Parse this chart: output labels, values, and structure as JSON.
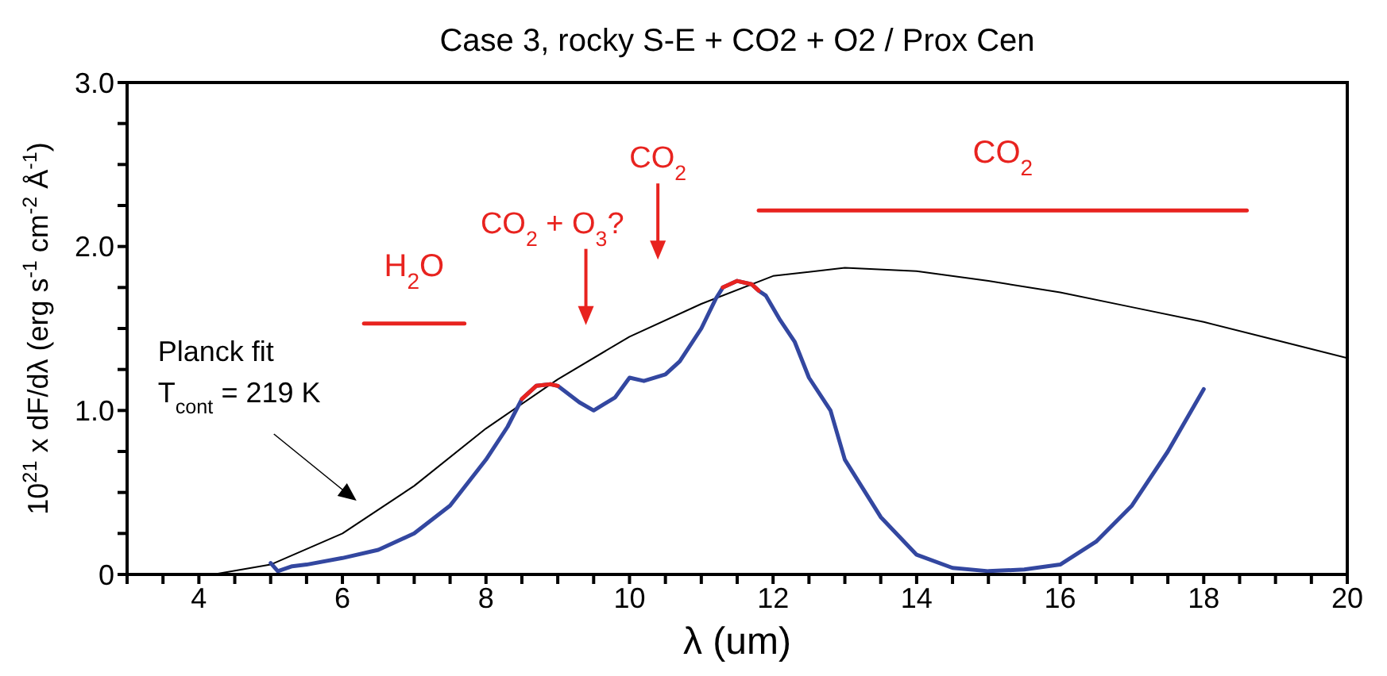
{
  "chart_data": {
    "type": "line",
    "title": "Case 3, rocky S-E  + CO2 + O2 / Prox Cen",
    "xlabel": "λ (um)",
    "ylabel": "10$^{21}$ x dF/dλ   (erg s$^{-1}$ cm$^{-2}$ Å$^{-1}$)",
    "xlim": [
      3,
      20
    ],
    "xticks": [
      {
        "value": 3,
        "label": null
      },
      {
        "value": 3.5,
        "label": null
      },
      4,
      {
        "value": 4.5,
        "label": null
      },
      {
        "value": 5,
        "label": null
      },
      {
        "value": 5.5,
        "label": null
      },
      6,
      {
        "value": 6.5,
        "label": null
      },
      {
        "value": 7,
        "label": null
      },
      {
        "value": 7.5,
        "label": null
      },
      8,
      {
        "value": 8.5,
        "label": null
      },
      {
        "value": 9,
        "label": null
      },
      {
        "value": 9.5,
        "label": null
      },
      10,
      {
        "value": 10.5,
        "label": null
      },
      {
        "value": 11,
        "label": null
      },
      {
        "value": 11.5,
        "label": null
      },
      12,
      {
        "value": 12.5,
        "label": null
      },
      {
        "value": 13,
        "label": null
      },
      {
        "value": 13.5,
        "label": null
      },
      14,
      {
        "value": 14.5,
        "label": null
      },
      {
        "value": 15,
        "label": null
      },
      {
        "value": 15.5,
        "label": null
      },
      16,
      {
        "value": 16.5,
        "label": null
      },
      {
        "value": 17,
        "label": null
      },
      {
        "value": 17.5,
        "label": null
      },
      18,
      {
        "value": 18.5,
        "label": null
      },
      {
        "value": 19,
        "label": null
      },
      {
        "value": 19.5,
        "label": null
      },
      20
    ],
    "ylim": [
      0,
      3
    ],
    "yticks": [
      0,
      {
        "value": 0.25,
        "label": null
      },
      {
        "value": 0.5,
        "label": null
      },
      {
        "value": 0.75,
        "label": null
      },
      {
        "value": 1,
        "label": "1.0"
      },
      {
        "value": 1.25,
        "label": null
      },
      {
        "value": 1.5,
        "label": null
      },
      {
        "value": 1.75,
        "label": null
      },
      {
        "value": 2,
        "label": "2.0"
      },
      {
        "value": 2.25,
        "label": null
      },
      {
        "value": 2.5,
        "label": null
      },
      {
        "value": 2.75,
        "label": null
      },
      {
        "value": 3,
        "label": "3.0"
      }
    ],
    "marker": "none",
    "line_style": "solid",
    "series": [
      {
        "color": "#000000",
        "x": [
          4.2,
          5,
          6,
          7,
          8,
          9,
          10,
          11,
          12,
          13,
          14,
          15,
          16,
          17,
          18,
          19,
          20
        ],
        "values": [
          0,
          0.06,
          0.25,
          0.54,
          0.89,
          1.19,
          1.45,
          1.65,
          1.82,
          1.87,
          1.85,
          1.79,
          1.72,
          1.63,
          1.54,
          1.43,
          1.32
        ]
      },
      {
        "color": "#3347a0",
        "x": [
          5,
          5.1,
          5.3,
          5.5,
          6,
          6.5,
          7,
          7.5,
          8,
          8.3,
          8.5,
          8.7,
          8.9,
          9,
          9.3,
          9.5,
          9.8,
          10,
          10.2,
          10.5,
          10.7,
          11,
          11.2,
          11.3,
          11.5,
          11.7,
          11.8,
          11.9,
          12.1,
          12.3,
          12.5,
          12.8,
          13,
          13.5,
          14,
          14.5,
          15,
          15.5,
          16,
          16.5,
          17,
          17.5,
          18
        ],
        "values": [
          0.07,
          0.02,
          0.05,
          0.06,
          0.1,
          0.15,
          0.25,
          0.42,
          0.7,
          0.9,
          1.07,
          1.15,
          1.16,
          1.15,
          1.05,
          1.0,
          1.08,
          1.2,
          1.18,
          1.22,
          1.3,
          1.5,
          1.68,
          1.75,
          1.79,
          1.77,
          1.73,
          1.7,
          1.55,
          1.42,
          1.2,
          1.0,
          0.7,
          0.35,
          0.12,
          0.04,
          0.02,
          0.03,
          0.06,
          0.2,
          0.42,
          0.75,
          1.13
        ]
      },
      {
        "color": "#e8231f",
        "x": [
          8.5,
          8.7,
          8.9,
          9.0
        ],
        "values": [
          1.07,
          1.15,
          1.16,
          1.15
        ]
      },
      {
        "color": "#e8231f",
        "x": [
          11.3,
          11.5,
          11.7,
          11.8
        ],
        "values": [
          1.75,
          1.79,
          1.77,
          1.73
        ]
      },
      {
        "name": "H$_{2}$O",
        "color": "#e8231f",
        "x": [
          6.3,
          7.7
        ],
        "values": [
          1.53,
          1.53
        ]
      },
      {
        "name": "CO$_{2}$",
        "color": "#e8231f",
        "x": [
          11.8,
          18.6
        ],
        "values": [
          2.22,
          2.22
        ]
      }
    ],
    "annotations": [
      "CO$_{2}$ + O$_{3}$?",
      "CO$_{2}$",
      "Planck fit\nT$_{cont}$ = 219 K"
    ]
  }
}
